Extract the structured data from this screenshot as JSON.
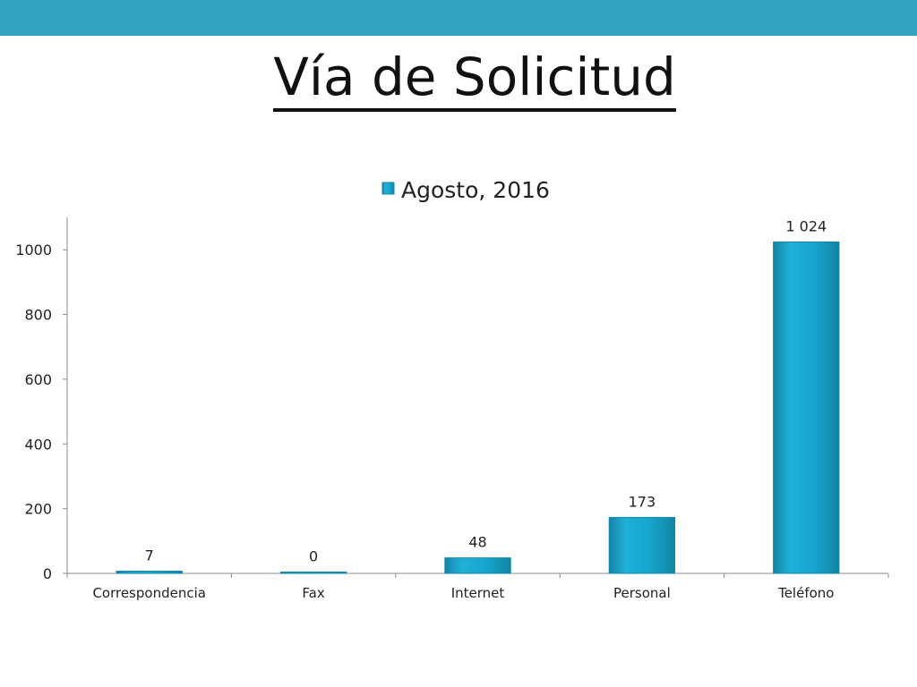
{
  "slide": {
    "title": "Vía de Solicitud"
  },
  "colors": {
    "top_bar": "#2fa1c1",
    "bar": "#1a9fc7",
    "bar_edge": "#1687a9"
  },
  "chart_data": {
    "type": "bar",
    "categories": [
      "Correspondencia",
      "Fax",
      "Internet",
      "Personal",
      "Teléfono"
    ],
    "series": [
      {
        "name": "Agosto, 2016",
        "values": [
          7,
          0,
          48,
          173,
          1024
        ]
      }
    ],
    "data_labels": [
      "7",
      "0",
      "48",
      "173",
      "1 024"
    ],
    "y_ticks": [
      0,
      200,
      400,
      600,
      800,
      1000
    ],
    "ylim": [
      0,
      1100
    ],
    "grid": false,
    "legend_position": "top"
  }
}
